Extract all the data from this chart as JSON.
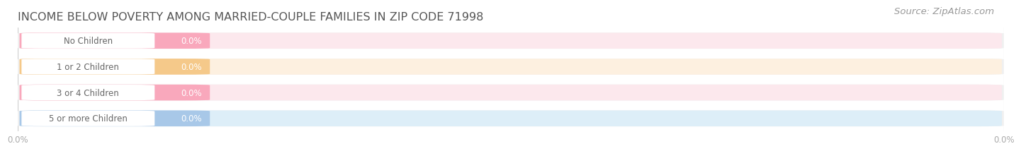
{
  "title": "INCOME BELOW POVERTY AMONG MARRIED-COUPLE FAMILIES IN ZIP CODE 71998",
  "source": "Source: ZipAtlas.com",
  "categories": [
    "No Children",
    "1 or 2 Children",
    "3 or 4 Children",
    "5 or more Children"
  ],
  "values": [
    0.0,
    0.0,
    0.0,
    0.0
  ],
  "bar_colors": [
    "#f9a8bc",
    "#f5c98a",
    "#f9a8bc",
    "#a8c8e8"
  ],
  "bar_bg_colors": [
    "#fce8ed",
    "#fdf0e0",
    "#fce8ed",
    "#ddeef8"
  ],
  "outer_bg_color": "#f0f0f0",
  "value_label_color": "#ffffff",
  "category_label_color": "#666666",
  "title_color": "#555555",
  "source_color": "#999999",
  "background_color": "#ffffff",
  "bar_height": 0.62,
  "title_fontsize": 11.5,
  "label_fontsize": 8.5,
  "value_fontsize": 8.5,
  "source_fontsize": 9.5,
  "tick_labels": [
    "0.0%",
    "0.0%"
  ],
  "tick_color": "#aaaaaa"
}
